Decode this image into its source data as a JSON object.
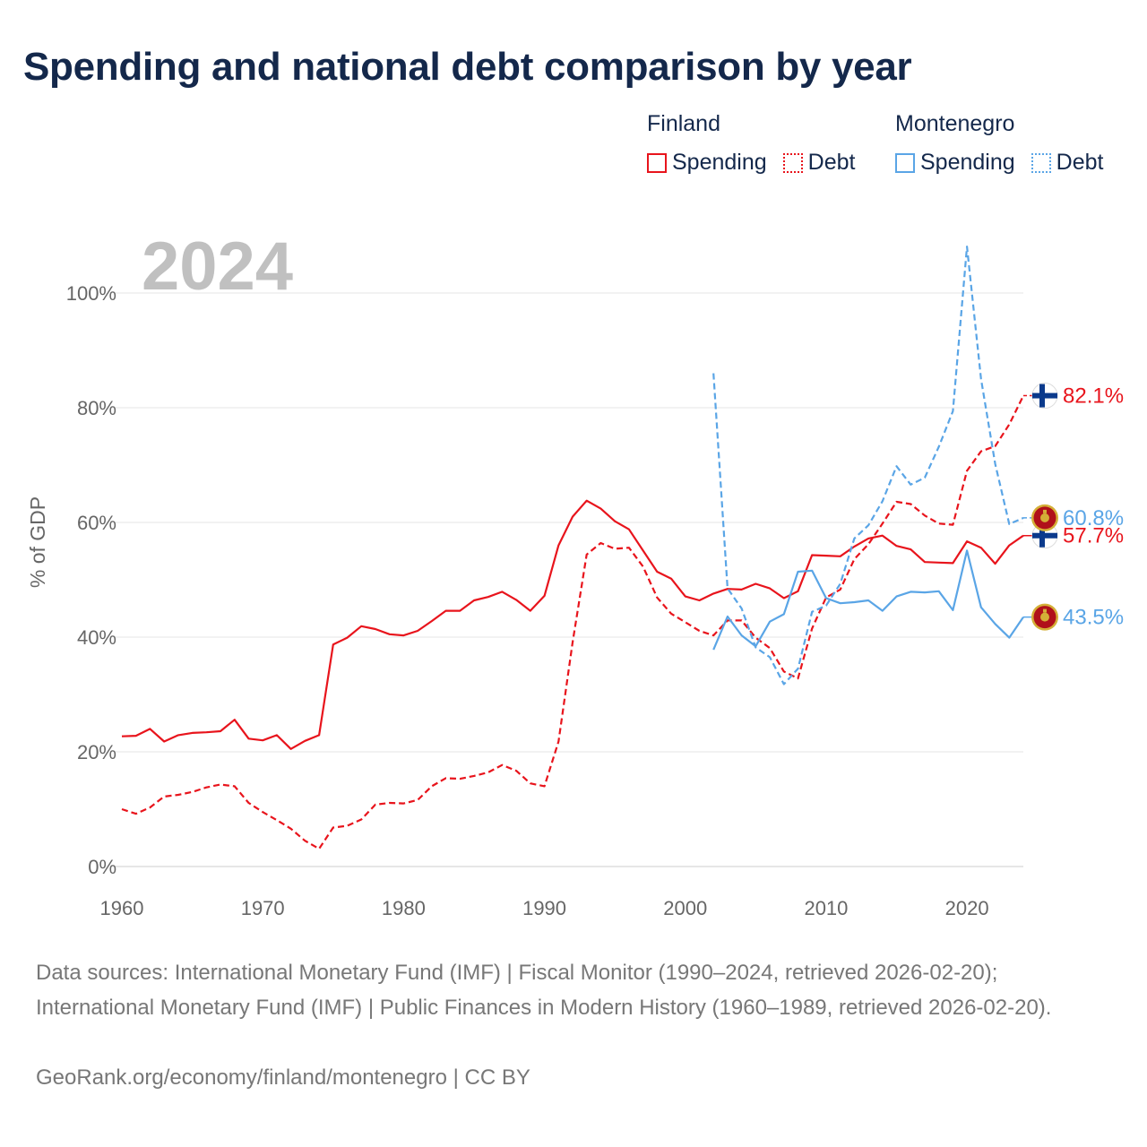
{
  "title": "Spending and national debt comparison by year",
  "legend": {
    "groups": [
      {
        "name": "Finland",
        "color": "#e8141c",
        "items": [
          {
            "label": "Spending",
            "style": "solid"
          },
          {
            "label": "Debt",
            "style": "dotted"
          }
        ]
      },
      {
        "name": "Montenegro",
        "color": "#5aa5e6",
        "items": [
          {
            "label": "Spending",
            "style": "solid"
          },
          {
            "label": "Debt",
            "style": "dotted"
          }
        ]
      }
    ]
  },
  "footer": {
    "sources": "Data sources: International Monetary Fund (IMF) | Fiscal Monitor (1990–2024, retrieved 2026-02-20); International Monetary Fund (IMF) | Public Finances in Modern History (1960–1989, retrieved 2026-02-20).",
    "credit": "GeoRank.org/economy/finland/montenegro | CC BY"
  },
  "chart_data": {
    "type": "line",
    "title": "Spending and national debt comparison by year",
    "year_label": "2024",
    "xlabel": "",
    "ylabel": "% of GDP",
    "xlim": [
      1960,
      2024
    ],
    "ylim": [
      0,
      100
    ],
    "x_ticks": [
      1960,
      1970,
      1980,
      1990,
      2000,
      2010,
      2020
    ],
    "y_ticks": [
      {
        "value": 0,
        "label": "0%"
      },
      {
        "value": 20,
        "label": "20%"
      },
      {
        "value": 40,
        "label": "40%"
      },
      {
        "value": 60,
        "label": "60%"
      },
      {
        "value": 80,
        "label": "80%"
      },
      {
        "value": 100,
        "label": "100%"
      }
    ],
    "grid": true,
    "series": [
      {
        "name": "Finland Spending",
        "country": "Finland",
        "flag": "finland",
        "color": "#e8141c",
        "dash": "solid",
        "end_label": "57.7%",
        "points": [
          [
            1960,
            22.7
          ],
          [
            1961,
            22.8
          ],
          [
            1962,
            24.0
          ],
          [
            1963,
            21.8
          ],
          [
            1964,
            22.9
          ],
          [
            1965,
            23.3
          ],
          [
            1966,
            23.4
          ],
          [
            1967,
            23.6
          ],
          [
            1968,
            25.6
          ],
          [
            1969,
            22.3
          ],
          [
            1970,
            22.0
          ],
          [
            1971,
            22.9
          ],
          [
            1972,
            20.5
          ],
          [
            1973,
            21.9
          ],
          [
            1974,
            22.9
          ],
          [
            1975,
            38.7
          ],
          [
            1976,
            39.9
          ],
          [
            1977,
            41.9
          ],
          [
            1978,
            41.4
          ],
          [
            1979,
            40.5
          ],
          [
            1980,
            40.3
          ],
          [
            1981,
            41.1
          ],
          [
            1982,
            42.8
          ],
          [
            1983,
            44.6
          ],
          [
            1984,
            44.6
          ],
          [
            1985,
            46.4
          ],
          [
            1986,
            47.0
          ],
          [
            1987,
            47.9
          ],
          [
            1988,
            46.5
          ],
          [
            1989,
            44.6
          ],
          [
            1990,
            47.2
          ],
          [
            1991,
            56.0
          ],
          [
            1992,
            61.0
          ],
          [
            1993,
            63.8
          ],
          [
            1994,
            62.4
          ],
          [
            1995,
            60.2
          ],
          [
            1996,
            58.8
          ],
          [
            1997,
            55.1
          ],
          [
            1998,
            51.4
          ],
          [
            1999,
            50.2
          ],
          [
            2000,
            47.1
          ],
          [
            2001,
            46.4
          ],
          [
            2002,
            47.6
          ],
          [
            2003,
            48.4
          ],
          [
            2004,
            48.3
          ],
          [
            2005,
            49.3
          ],
          [
            2006,
            48.5
          ],
          [
            2007,
            46.8
          ],
          [
            2008,
            48.0
          ],
          [
            2009,
            54.3
          ],
          [
            2010,
            54.2
          ],
          [
            2011,
            54.1
          ],
          [
            2012,
            55.8
          ],
          [
            2013,
            57.2
          ],
          [
            2014,
            57.7
          ],
          [
            2015,
            55.9
          ],
          [
            2016,
            55.3
          ],
          [
            2017,
            53.1
          ],
          [
            2018,
            53.0
          ],
          [
            2019,
            52.9
          ],
          [
            2020,
            56.7
          ],
          [
            2021,
            55.6
          ],
          [
            2022,
            52.8
          ],
          [
            2023,
            56.0
          ],
          [
            2024,
            57.7
          ]
        ]
      },
      {
        "name": "Finland Debt",
        "country": "Finland",
        "flag": "finland",
        "color": "#e8141c",
        "dash": "dashed",
        "end_label": "82.1%",
        "points": [
          [
            1960,
            10.0
          ],
          [
            1961,
            9.2
          ],
          [
            1962,
            10.3
          ],
          [
            1963,
            12.2
          ],
          [
            1964,
            12.5
          ],
          [
            1965,
            13.0
          ],
          [
            1966,
            13.8
          ],
          [
            1967,
            14.3
          ],
          [
            1968,
            14.0
          ],
          [
            1969,
            11.1
          ],
          [
            1970,
            9.5
          ],
          [
            1971,
            8.1
          ],
          [
            1972,
            6.6
          ],
          [
            1973,
            4.5
          ],
          [
            1974,
            3.1
          ],
          [
            1975,
            6.8
          ],
          [
            1976,
            7.1
          ],
          [
            1977,
            8.2
          ],
          [
            1978,
            10.8
          ],
          [
            1979,
            11.1
          ],
          [
            1980,
            11.0
          ],
          [
            1981,
            11.6
          ],
          [
            1982,
            14.0
          ],
          [
            1983,
            15.4
          ],
          [
            1984,
            15.3
          ],
          [
            1985,
            15.8
          ],
          [
            1986,
            16.4
          ],
          [
            1987,
            17.7
          ],
          [
            1988,
            16.7
          ],
          [
            1989,
            14.5
          ],
          [
            1990,
            14.0
          ],
          [
            1991,
            21.8
          ],
          [
            1992,
            39.1
          ],
          [
            1993,
            54.4
          ],
          [
            1994,
            56.4
          ],
          [
            1995,
            55.4
          ],
          [
            1996,
            55.6
          ],
          [
            1997,
            52.3
          ],
          [
            1998,
            46.9
          ],
          [
            1999,
            44.1
          ],
          [
            2000,
            42.6
          ],
          [
            2001,
            41.1
          ],
          [
            2002,
            40.3
          ],
          [
            2003,
            42.9
          ],
          [
            2004,
            42.9
          ],
          [
            2005,
            39.9
          ],
          [
            2006,
            38.1
          ],
          [
            2007,
            34.0
          ],
          [
            2008,
            32.8
          ],
          [
            2009,
            41.5
          ],
          [
            2010,
            46.9
          ],
          [
            2011,
            48.3
          ],
          [
            2012,
            53.6
          ],
          [
            2013,
            56.2
          ],
          [
            2014,
            59.8
          ],
          [
            2015,
            63.6
          ],
          [
            2016,
            63.2
          ],
          [
            2017,
            61.2
          ],
          [
            2018,
            59.8
          ],
          [
            2019,
            59.6
          ],
          [
            2020,
            69.0
          ],
          [
            2021,
            72.4
          ],
          [
            2022,
            73.3
          ],
          [
            2023,
            77.1
          ],
          [
            2024,
            82.1
          ]
        ]
      },
      {
        "name": "Montenegro Spending",
        "country": "Montenegro",
        "flag": "montenegro",
        "color": "#5aa5e6",
        "dash": "solid",
        "end_label": "43.5%",
        "points": [
          [
            2002,
            37.8
          ],
          [
            2003,
            43.6
          ],
          [
            2004,
            40.3
          ],
          [
            2005,
            38.4
          ],
          [
            2006,
            42.7
          ],
          [
            2007,
            44.0
          ],
          [
            2008,
            51.4
          ],
          [
            2009,
            51.6
          ],
          [
            2010,
            46.8
          ],
          [
            2011,
            45.9
          ],
          [
            2012,
            46.1
          ],
          [
            2013,
            46.4
          ],
          [
            2014,
            44.6
          ],
          [
            2015,
            47.1
          ],
          [
            2016,
            47.9
          ],
          [
            2017,
            47.8
          ],
          [
            2018,
            48.0
          ],
          [
            2019,
            44.7
          ],
          [
            2020,
            55.1
          ],
          [
            2021,
            45.2
          ],
          [
            2022,
            42.3
          ],
          [
            2023,
            39.9
          ],
          [
            2024,
            43.5
          ]
        ]
      },
      {
        "name": "Montenegro Debt",
        "country": "Montenegro",
        "flag": "montenegro",
        "color": "#5aa5e6",
        "dash": "dashed",
        "end_label": "60.8%",
        "points": [
          [
            2002,
            86.0
          ],
          [
            2003,
            48.5
          ],
          [
            2004,
            45.0
          ],
          [
            2005,
            38.2
          ],
          [
            2006,
            36.5
          ],
          [
            2007,
            31.8
          ],
          [
            2008,
            34.5
          ],
          [
            2009,
            44.4
          ],
          [
            2010,
            45.5
          ],
          [
            2011,
            49.3
          ],
          [
            2012,
            57.2
          ],
          [
            2013,
            59.5
          ],
          [
            2014,
            63.7
          ],
          [
            2015,
            69.8
          ],
          [
            2016,
            66.6
          ],
          [
            2017,
            67.8
          ],
          [
            2018,
            73.2
          ],
          [
            2019,
            79.4
          ],
          [
            2020,
            108.1
          ],
          [
            2021,
            85.0
          ],
          [
            2022,
            70.2
          ],
          [
            2023,
            59.7
          ],
          [
            2024,
            60.8
          ]
        ]
      }
    ]
  }
}
